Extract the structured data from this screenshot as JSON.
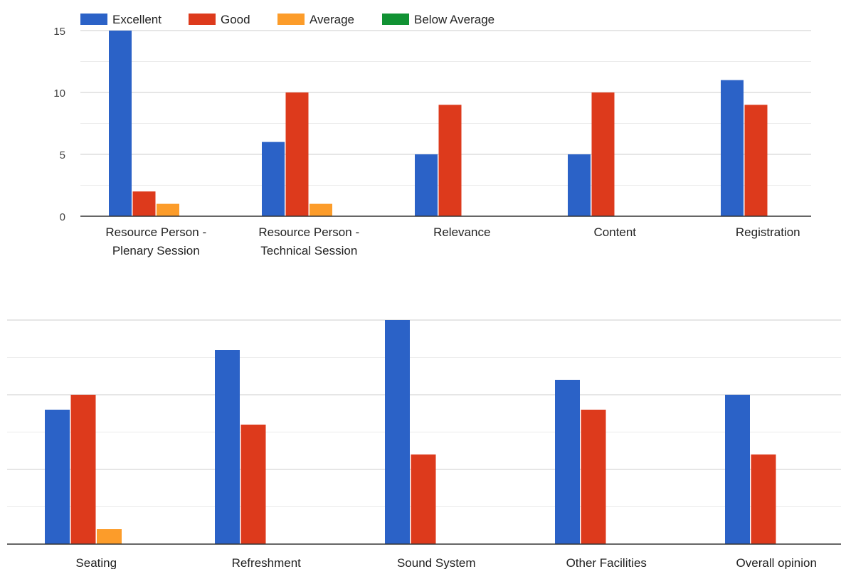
{
  "chart_data": [
    {
      "type": "bar",
      "categories": [
        "Resource Person - Plenary Session",
        "Resource Person - Technical Session",
        "Relevance",
        "Content",
        "Registration"
      ],
      "category_lines": [
        [
          "Resource Person -",
          "Plenary Session"
        ],
        [
          "Resource Person -",
          "Technical Session"
        ],
        [
          "Relevance"
        ],
        [
          "Content"
        ],
        [
          "Registration"
        ]
      ],
      "series": [
        {
          "name": "Excellent",
          "color": "#2b62c7",
          "values": [
            15,
            6,
            5,
            5,
            11
          ]
        },
        {
          "name": "Good",
          "color": "#dd3a1c",
          "values": [
            2,
            10,
            9,
            10,
            9
          ]
        },
        {
          "name": "Average",
          "color": "#fc9c2a",
          "values": [
            1,
            1,
            0,
            0,
            0
          ]
        },
        {
          "name": "Below Average",
          "color": "#119233",
          "values": [
            0,
            0,
            0,
            0,
            0
          ]
        }
      ],
      "y_ticks": [
        0,
        5,
        10,
        15
      ],
      "ylim": [
        0,
        15
      ],
      "grid": true,
      "legend": "top-left"
    },
    {
      "type": "bar",
      "categories": [
        "Seating",
        "Refreshment",
        "Sound System",
        "Other Facilities",
        "Overall opinion"
      ],
      "category_lines": [
        [
          "Seating"
        ],
        [
          "Refreshment"
        ],
        [
          "Sound System"
        ],
        [
          "Other Facilities"
        ],
        [
          "Overall opinion"
        ]
      ],
      "series": [
        {
          "name": "Excellent",
          "color": "#2b62c7",
          "values": [
            9,
            13,
            15,
            11,
            10
          ]
        },
        {
          "name": "Good",
          "color": "#dd3a1c",
          "values": [
            10,
            8,
            6,
            9,
            6
          ]
        },
        {
          "name": "Average",
          "color": "#fc9c2a",
          "values": [
            1,
            0,
            0,
            0,
            0
          ]
        },
        {
          "name": "Below Average",
          "color": "#119233",
          "values": [
            0,
            0,
            0,
            0,
            0
          ]
        }
      ],
      "y_ticks": [],
      "ylim": [
        0,
        15
      ],
      "grid": true,
      "legend": "none"
    }
  ]
}
